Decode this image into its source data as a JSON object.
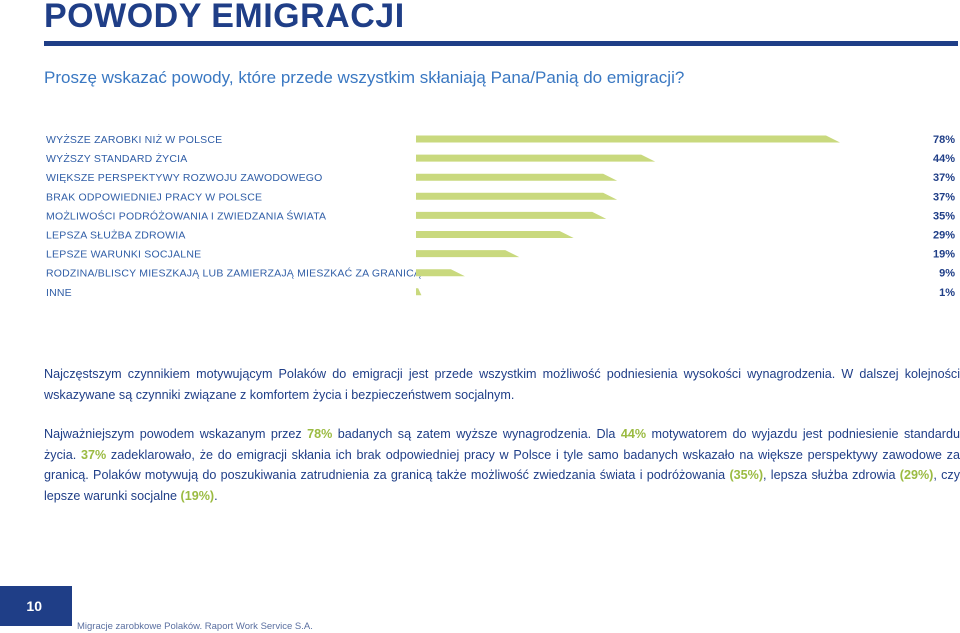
{
  "header": {
    "title": "POWODY EMIGRACJI",
    "subtitle": "Proszę wskazać powody, które przede wszystkim skłaniają Pana/Panią do emigracji?"
  },
  "colors": {
    "brand": "#1f3e87",
    "accent": "#3a78c2",
    "bar": "#c9d97e",
    "highlight": "#9bbb42"
  },
  "chart_data": {
    "type": "bar",
    "orientation": "horizontal",
    "title": "",
    "xlabel": "",
    "ylabel": "",
    "xlim": [
      0,
      78
    ],
    "grid": false,
    "categories": [
      "WYŻSZE ZAROBKI NIŻ W POLSCE",
      "WYŻSZY STANDARD ŻYCIA",
      "WIĘKSZE PERSPEKTYWY ROZWOJU ZAWODOWEGO",
      "BRAK ODPOWIEDNIEJ PRACY W POLSCE",
      "MOŻLIWOŚCI PODRÓŻOWANIA I ZWIEDZANIA ŚWIATA",
      "LEPSZA SŁUŻBA ZDROWIA",
      "LEPSZE WARUNKI SOCJALNE",
      "RODZINA/BLISCY MIESZKAJĄ LUB ZAMIERZAJĄ MIESZKAĆ ZA GRANICĄ",
      "INNE"
    ],
    "values": [
      78,
      44,
      37,
      37,
      35,
      29,
      19,
      9,
      1
    ],
    "value_labels": [
      "78%",
      "44%",
      "37%",
      "37%",
      "35%",
      "29%",
      "19%",
      "9%",
      "1%"
    ]
  },
  "text": {
    "p1": "Najczęstszym czynnikiem motywującym Polaków do emigracji jest przede wszystkim możliwość podniesienia wysokości wynagrodzenia. W dalszej kolejności wskazywane są czynniki  związane z komfortem życia i bezpieczeństwem socjalnym.",
    "p2": {
      "s1": "Najważniejszym powodem wskazanym przez ",
      "h1": "78%",
      "s2": " badanych są zatem wyższe wynagrodzenia.  Dla ",
      "h2": "44%",
      "s3": " motywatorem do wyjazdu jest podniesienie standardu życia. ",
      "h3": "37%",
      "s4": " zadeklarowało, że do emigracji skłania ich brak odpowiedniej pracy w Polsce i tyle samo badanych wskazało na większe perspektywy zawodowe za granicą. Polaków motywują do poszukiwania zatrudnienia za granicą także możliwość zwiedzania świata i podróżowania ",
      "h4": "(35%)",
      "s5": ", lepsza służba zdrowia ",
      "h5": "(29%)",
      "s6": ", czy lepsze warunki socjalne ",
      "h6": "(19%)",
      "s7": "."
    }
  },
  "footer": {
    "page_number": "10",
    "source": "Migracje zarobkowe Polaków. Raport Work Service S.A."
  }
}
